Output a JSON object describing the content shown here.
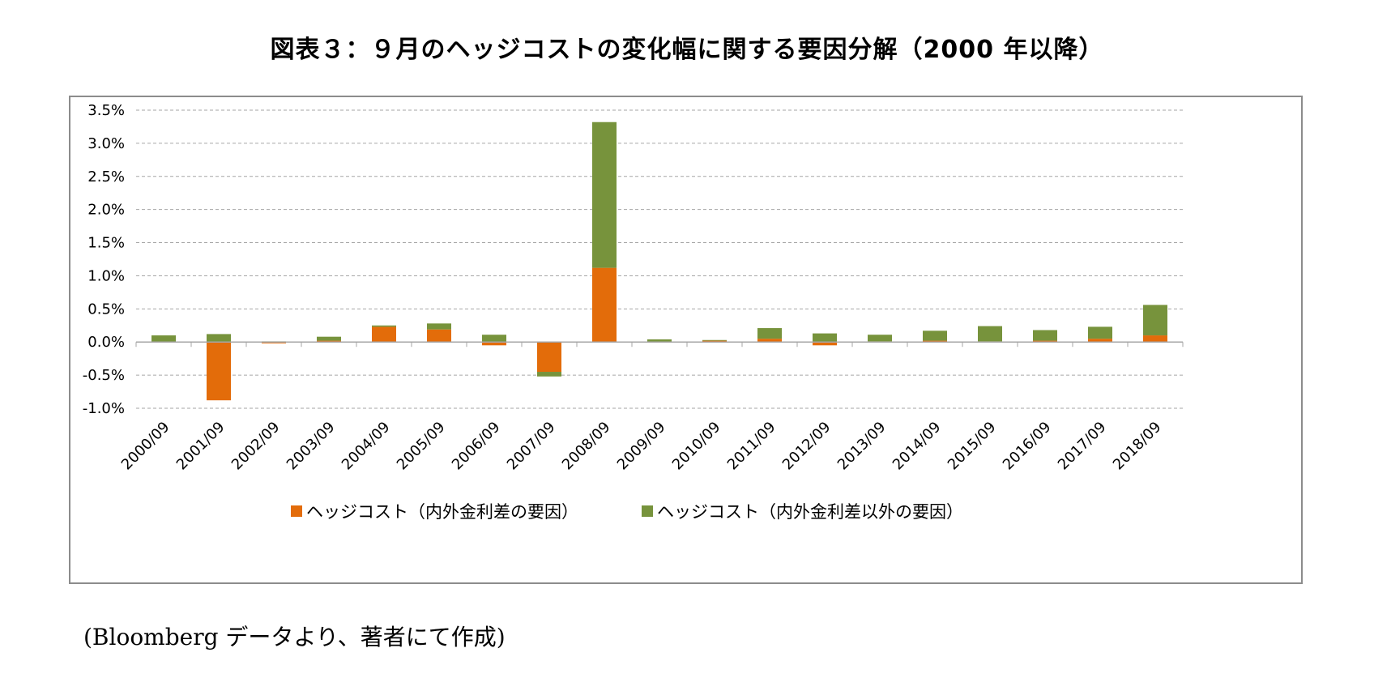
{
  "title": "図表３：９月のヘッジコストの変化幅に関する要因分解（2000 年以降）",
  "source_note": "(Bloomberg データより、著者にて作成)",
  "colors": {
    "series1": "#E36C0A",
    "series2": "#77933C",
    "grid": "#A6A6A6",
    "axis": "#A6A6A6"
  },
  "chart_data": {
    "type": "bar",
    "stacked": true,
    "categories": [
      "2000/09",
      "2001/09",
      "2002/09",
      "2003/09",
      "2004/09",
      "2005/09",
      "2006/09",
      "2007/09",
      "2008/09",
      "2009/09",
      "2010/09",
      "2011/09",
      "2012/09",
      "2013/09",
      "2014/09",
      "2015/09",
      "2016/09",
      "2017/09",
      "2018/09"
    ],
    "series": [
      {
        "name": "ヘッジコスト（内外金利差の要因）",
        "values": [
          -0.01,
          -0.88,
          -0.02,
          0.02,
          0.23,
          0.19,
          -0.05,
          -0.45,
          1.12,
          -0.01,
          0.02,
          0.05,
          -0.05,
          0.01,
          0.02,
          0.01,
          0.02,
          0.05,
          0.1
        ]
      },
      {
        "name": "ヘッジコスト（内外金利差以外の要因）",
        "values": [
          0.1,
          0.12,
          0.01,
          0.06,
          0.02,
          0.09,
          0.11,
          -0.07,
          2.2,
          0.04,
          0.01,
          0.16,
          0.13,
          0.1,
          0.15,
          0.23,
          0.16,
          0.18,
          0.46
        ]
      }
    ],
    "y_ticks": [
      "3.5%",
      "3.0%",
      "2.5%",
      "2.0%",
      "1.5%",
      "1.0%",
      "0.5%",
      "0.0%",
      "-0.5%",
      "-1.0%"
    ],
    "ylim": [
      -1.0,
      3.5
    ],
    "grid": true,
    "legend_position": "bottom"
  }
}
